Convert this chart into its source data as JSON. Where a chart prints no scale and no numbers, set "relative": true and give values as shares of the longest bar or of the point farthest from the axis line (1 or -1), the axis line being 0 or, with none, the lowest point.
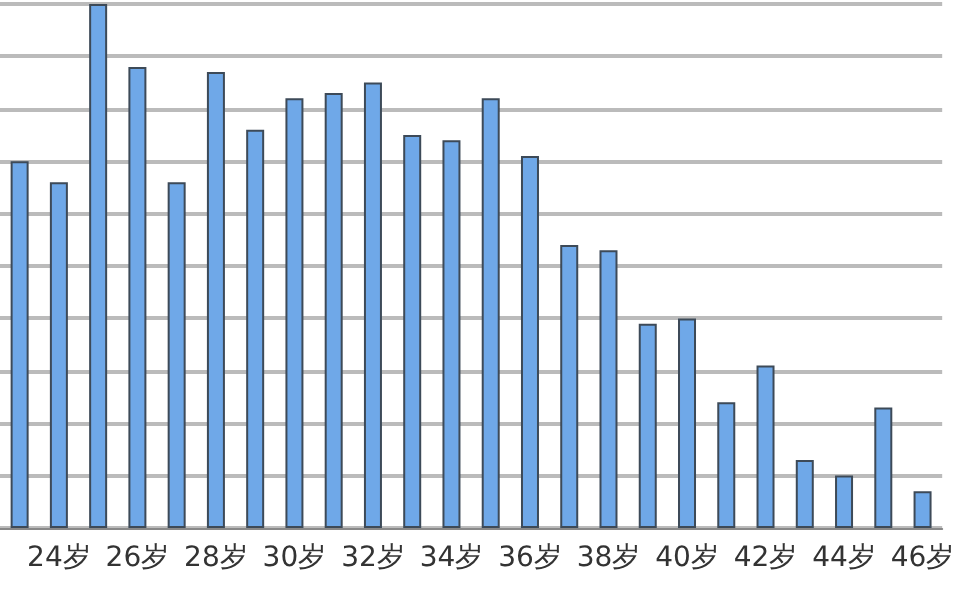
{
  "chart_data": {
    "type": "bar",
    "relative": true,
    "grid": "y",
    "color": "#6fa8e8",
    "categories": [
      null,
      "24岁",
      null,
      "26岁",
      null,
      "28岁",
      null,
      "30岁",
      null,
      "32岁",
      null,
      "34岁",
      null,
      "36岁",
      null,
      "38岁",
      null,
      "40岁",
      null,
      "42岁",
      null,
      "44岁",
      null,
      "46岁"
    ],
    "values": [
      0.7,
      0.66,
      1,
      0.88,
      0.66,
      0.87,
      0.76,
      0.82,
      0.83,
      0.85,
      0.75,
      0.74,
      0.82,
      0.71,
      0.54,
      0.53,
      0.39,
      0.4,
      0.24,
      0.31,
      0.13,
      0.1,
      0.23,
      0.07
    ]
  }
}
